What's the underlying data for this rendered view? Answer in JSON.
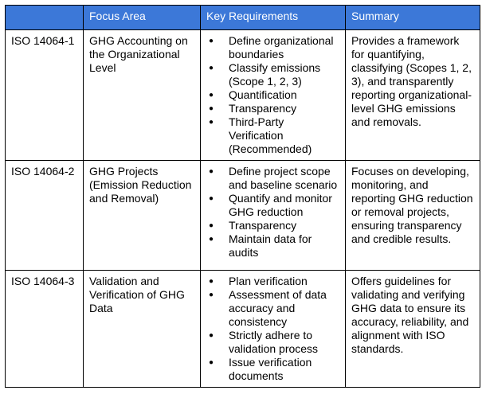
{
  "table": {
    "header_color": "#3c78d8",
    "headers": [
      "",
      "Focus Area",
      "Key Requirements",
      "Summary"
    ],
    "rows": [
      {
        "standard": "ISO 14064-1",
        "focus": "GHG Accounting on the Organizational Level",
        "requirements": [
          "Define organizational boundaries",
          "Classify emissions (Scope 1, 2, 3)",
          "Quantification",
          "Transparency",
          "Third-Party Verification (Recommended)"
        ],
        "summary": "Provides a framework for quantifying, classifying (Scopes 1, 2, 3), and transparently reporting organizational-level GHG emissions and removals."
      },
      {
        "standard": "ISO 14064-2",
        "focus": "GHG Projects (Emission Reduction and Removal)",
        "requirements": [
          "Define project scope and baseline scenario",
          "Quantify and monitor GHG reduction",
          "Transparency",
          "Maintain data for audits"
        ],
        "summary": "Focuses on developing, monitoring, and reporting GHG reduction or removal projects, ensuring transparency and credible results."
      },
      {
        "standard": "ISO 14064-3",
        "focus": "Validation and Verification of GHG Data",
        "requirements": [
          "Plan verification",
          "Assessment of data accuracy and consistency",
          "Strictly adhere to validation process",
          "Issue verification documents"
        ],
        "summary": "Offers guidelines for validating and verifying GHG data to ensure its accuracy, reliability, and alignment with ISO standards."
      }
    ]
  }
}
